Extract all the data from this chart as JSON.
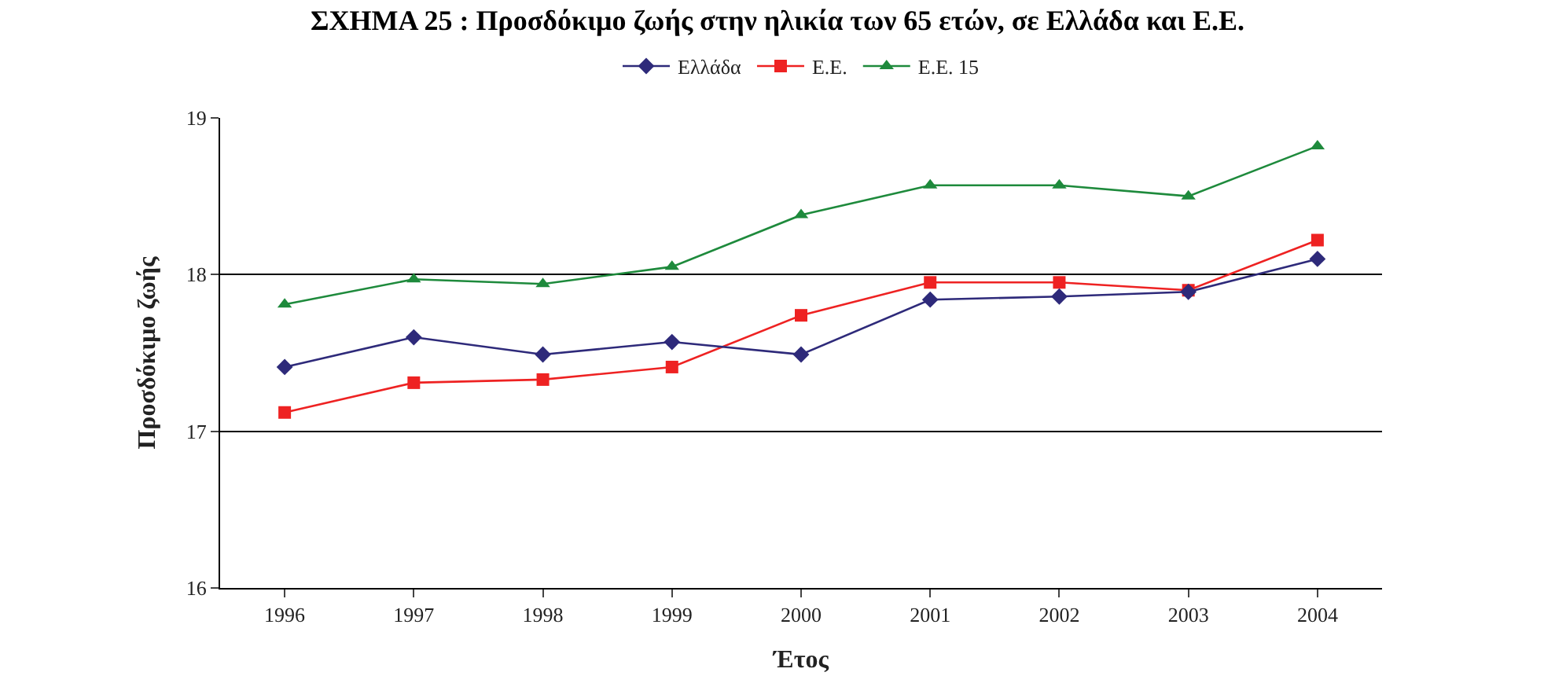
{
  "chart_data": {
    "type": "line",
    "title": "ΣΧΗΜΑ 25 : Προσδόκιμο ζωής στην ηλικία των 65 ετών, σε Ελλάδα και Ε.Ε.",
    "xlabel": "Έτος",
    "ylabel": "Προσδόκιμο ζωής",
    "categories": [
      "1996",
      "1997",
      "1998",
      "1999",
      "2000",
      "2001",
      "2002",
      "2003",
      "2004"
    ],
    "series": [
      {
        "name": "Ελλάδα",
        "color": "#2e2a7a",
        "marker": "diamond",
        "values": [
          17.41,
          17.6,
          17.49,
          17.57,
          17.49,
          17.84,
          17.86,
          17.89,
          18.1
        ]
      },
      {
        "name": "Ε.Ε.",
        "color": "#ee2222",
        "marker": "square",
        "values": [
          17.12,
          17.31,
          17.33,
          17.41,
          17.74,
          17.95,
          17.95,
          17.9,
          18.22
        ]
      },
      {
        "name": "Ε.Ε. 15",
        "color": "#1e8a3c",
        "marker": "triangle",
        "values": [
          17.81,
          17.97,
          17.94,
          18.05,
          18.38,
          18.57,
          18.57,
          18.5,
          18.82
        ]
      }
    ],
    "ylim": [
      16,
      19
    ],
    "yticks": [
      16,
      17,
      18,
      19
    ],
    "grid": "y",
    "legend": "top",
    "line_style": "solid"
  }
}
